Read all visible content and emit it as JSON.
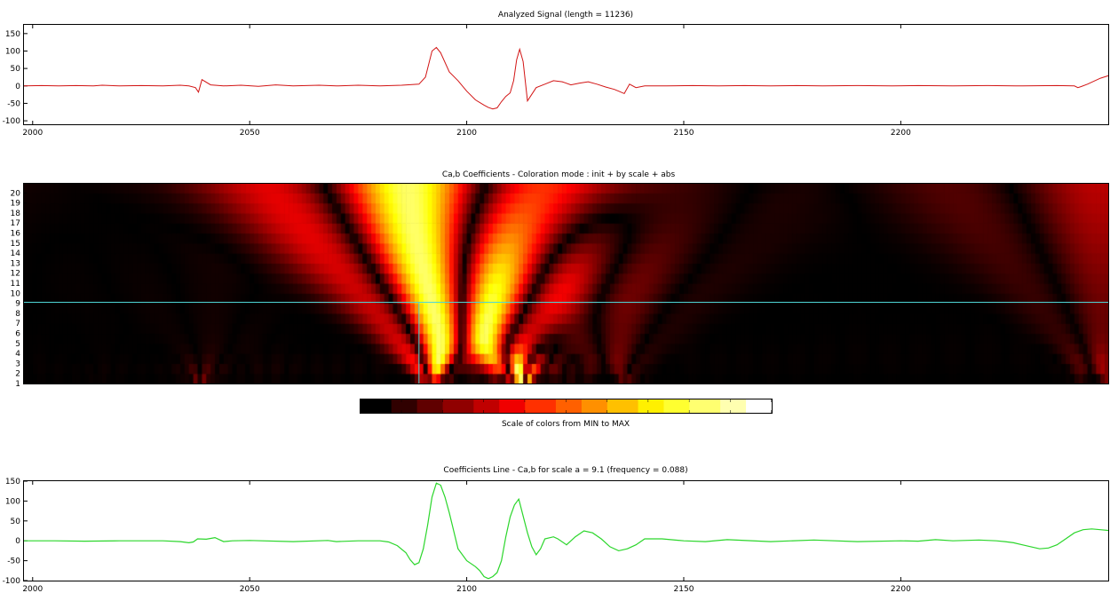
{
  "chart_data": [
    {
      "type": "line",
      "title": "Analyzed Signal  (length = 11236)",
      "xlim": [
        1998,
        2248
      ],
      "ylim": [
        -110,
        175
      ],
      "xticks": [
        2000,
        2050,
        2100,
        2150,
        2200
      ],
      "yticks": [
        150,
        100,
        50,
        0,
        -50,
        -100
      ],
      "xticklabels": [
        "2000",
        "2050",
        "2100",
        "2150",
        "2200"
      ],
      "yticklabels": [
        "150",
        "100",
        "50",
        "0",
        "-50",
        "-100"
      ],
      "color": "#d21414",
      "series": [
        {
          "x": [
            1998,
            2002,
            2006,
            2010,
            2014,
            2016,
            2020,
            2025,
            2030,
            2034,
            2036,
            2037.5,
            2038.2,
            2039,
            2041,
            2044,
            2048,
            2052,
            2056,
            2060,
            2066,
            2070,
            2075,
            2080,
            2085,
            2089,
            2090.5,
            2092,
            2093,
            2094,
            2096,
            2098,
            2100,
            2102,
            2104,
            2105,
            2106,
            2107,
            2108,
            2109,
            2110,
            2110.8,
            2111.5,
            2112.2,
            2113,
            2114,
            2116,
            2118,
            2120,
            2122,
            2124,
            2126,
            2128,
            2130,
            2132,
            2134,
            2135,
            2136.3,
            2137.5,
            2139,
            2141,
            2146,
            2152,
            2158,
            2164,
            2170,
            2176,
            2182,
            2190,
            2198,
            2204,
            2212,
            2220,
            2228,
            2236,
            2240,
            2240.8,
            2241.5,
            2243,
            2246,
            2248
          ],
          "y": [
            0,
            1,
            0,
            1,
            0,
            2,
            0,
            1,
            0,
            2,
            0,
            -5,
            -18,
            18,
            3,
            0,
            2,
            -1,
            3,
            0,
            2,
            0,
            2,
            0,
            2,
            5,
            25,
            100,
            110,
            95,
            40,
            15,
            -15,
            -40,
            -55,
            -62,
            -66,
            -63,
            -45,
            -30,
            -20,
            15,
            75,
            105,
            70,
            -43,
            -5,
            5,
            15,
            12,
            3,
            8,
            12,
            5,
            -3,
            -10,
            -15,
            -22,
            5,
            -5,
            0,
            0,
            1,
            0,
            1,
            0,
            1,
            0,
            1,
            0,
            1,
            0,
            1,
            0,
            1,
            0,
            -5,
            -2,
            5,
            22,
            30
          ]
        }
      ]
    },
    {
      "type": "heatmap",
      "title": "Ca,b Coefficients  - Coloration mode : init + by scale + abs",
      "xlim": [
        1998,
        2248
      ],
      "yticks": [
        20,
        19,
        18,
        17,
        16,
        15,
        14,
        13,
        12,
        11,
        10,
        9,
        8,
        7,
        6,
        5,
        4,
        3,
        2,
        1
      ],
      "yticklabels": [
        "20",
        "19",
        "18",
        "17",
        "16",
        "15",
        "14",
        "13",
        "12",
        "11",
        "10",
        "9",
        "8",
        "7",
        "6",
        "5",
        "4",
        "3",
        "2",
        "1"
      ],
      "colormap": "hot",
      "selected_scale": 9.1,
      "selected_position": 2089,
      "crosshair_color": "#4fd6d6"
    },
    {
      "type": "colorbar",
      "label": "Scale of colors from MIN to MAX",
      "colors": [
        "#000000",
        "#300000",
        "#600000",
        "#900000",
        "#c00000",
        "#f00000",
        "#ff3000",
        "#ff6000",
        "#ff9000",
        "#ffc000",
        "#fff000",
        "#ffff30",
        "#ffff70",
        "#ffffb0",
        "#ffffff"
      ]
    },
    {
      "type": "line",
      "title": "Coefficients Line - Ca,b    for scale a = 9.1  (frequency =    0.088)",
      "xlim": [
        1998,
        2248
      ],
      "ylim": [
        -100,
        150
      ],
      "xticks": [
        2000,
        2050,
        2100,
        2150,
        2200
      ],
      "yticks": [
        150,
        100,
        50,
        0,
        -50,
        -100
      ],
      "xticklabels": [
        "2000",
        "2050",
        "2100",
        "2150",
        "2200"
      ],
      "yticklabels": [
        "150",
        "100",
        "50",
        "0",
        "-50",
        "-100"
      ],
      "color": "#2bd62b",
      "series": [
        {
          "x": [
            1998,
            2005,
            2012,
            2020,
            2030,
            2034,
            2036,
            2037,
            2038,
            2040,
            2042,
            2044,
            2046,
            2050,
            2060,
            2068,
            2070,
            2075,
            2080,
            2082,
            2084,
            2086,
            2087,
            2088,
            2089,
            2090,
            2091,
            2092,
            2093,
            2094,
            2095,
            2096,
            2097,
            2098,
            2100,
            2102,
            2103,
            2104,
            2105,
            2106,
            2107,
            2108,
            2109,
            2110,
            2111,
            2112,
            2114,
            2115,
            2116,
            2117,
            2118,
            2120,
            2121,
            2123,
            2125,
            2127,
            2129,
            2131,
            2133,
            2135,
            2137,
            2139,
            2141,
            2145,
            2150,
            2155,
            2160,
            2170,
            2180,
            2190,
            2200,
            2204,
            2208,
            2212,
            2218,
            2222,
            2224,
            2226,
            2228,
            2230,
            2232,
            2234,
            2236,
            2238,
            2240,
            2242,
            2244,
            2246,
            2248
          ],
          "y": [
            0,
            0,
            -1,
            0,
            0,
            -2,
            -5,
            -3,
            5,
            4,
            8,
            -2,
            0,
            1,
            -2,
            1,
            -2,
            0,
            0,
            -3,
            -12,
            -30,
            -48,
            -60,
            -55,
            -20,
            40,
            110,
            145,
            140,
            110,
            70,
            25,
            -20,
            -50,
            -65,
            -75,
            -90,
            -95,
            -90,
            -80,
            -50,
            10,
            60,
            90,
            105,
            20,
            -15,
            -35,
            -20,
            5,
            10,
            5,
            -10,
            10,
            25,
            20,
            5,
            -15,
            -25,
            -20,
            -10,
            5,
            5,
            0,
            -2,
            3,
            -2,
            2,
            -2,
            0,
            -1,
            3,
            0,
            2,
            0,
            -2,
            -5,
            -10,
            -15,
            -20,
            -18,
            -10,
            5,
            20,
            28,
            30,
            28,
            26
          ]
        }
      ]
    }
  ]
}
